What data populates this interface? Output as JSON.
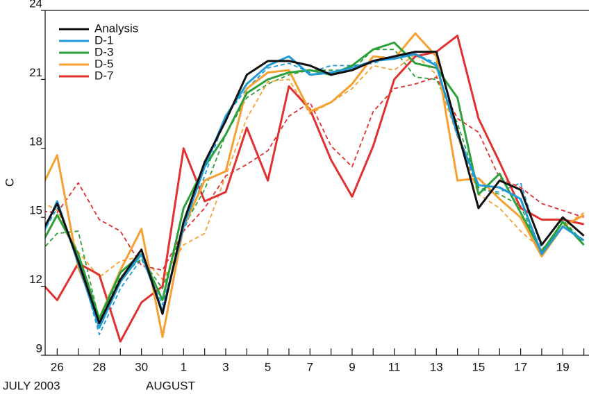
{
  "chart_data": {
    "type": "line",
    "y_label": "C",
    "annotations": [
      "JULY 2003",
      "AUGUST"
    ],
    "categories": [
      null,
      "26",
      null,
      "28",
      null,
      "30",
      null,
      "1",
      null,
      "3",
      null,
      "5",
      null,
      "7",
      null,
      "9",
      null,
      "11",
      null,
      "13",
      null,
      "15",
      null,
      "17",
      null,
      "19",
      null
    ],
    "ylim": [
      9,
      24
    ],
    "yticks": [
      9,
      12,
      15,
      18,
      21,
      24
    ],
    "legend": "upper left",
    "series": [
      {
        "color": "#1f9ad6",
        "dashed": true,
        "values": [
          13.8,
          15.4,
          13.2,
          9.9,
          11.9,
          13.2,
          11.2,
          14.4,
          16.8,
          19.4,
          20.6,
          21.5,
          21.7,
          21.3,
          21.6,
          21.6,
          21.7,
          22.0,
          22.1,
          21.7,
          18.5,
          16.2,
          16.1,
          16.5,
          13.6,
          14.6,
          14.0
        ]
      },
      {
        "color": "#2ca13a",
        "dashed": true,
        "values": [
          13.3,
          14.3,
          14.4,
          10.5,
          12.4,
          13.2,
          11.9,
          14.6,
          16.2,
          18.6,
          20.2,
          20.8,
          21.2,
          21.4,
          21.4,
          21.4,
          22.3,
          22.3,
          21.1,
          21.0,
          19.1,
          16.3,
          16.0,
          15.5,
          13.4,
          14.9,
          13.9
        ]
      },
      {
        "color": "#f5a030",
        "dashed": true,
        "values": [
          15.8,
          15.3,
          13.5,
          12.4,
          13.1,
          13.3,
          12.3,
          13.8,
          14.3,
          16.8,
          19.3,
          20.9,
          21.0,
          19.5,
          20.0,
          20.6,
          21.6,
          21.4,
          22.1,
          21.2,
          18.5,
          16.0,
          15.4,
          14.4,
          13.6,
          14.6,
          15.2
        ]
      },
      {
        "color": "#e03030",
        "dashed": true,
        "values": [
          15.3,
          15.2,
          16.5,
          14.9,
          14.4,
          12.9,
          12.7,
          14.4,
          15.4,
          16.8,
          17.3,
          17.9,
          19.4,
          20.0,
          18.1,
          17.2,
          19.6,
          20.6,
          20.8,
          21.1,
          19.3,
          18.7,
          16.7,
          16.3,
          15.6,
          15.3,
          15.0
        ]
      },
      {
        "name": "D-7",
        "color": "#e03030",
        "values": [
          12.4,
          11.4,
          13.0,
          12.5,
          9.6,
          11.3,
          12.0,
          18.0,
          15.7,
          16.1,
          18.9,
          16.6,
          20.7,
          19.7,
          17.5,
          15.9,
          18.1,
          21.0,
          22.0,
          22.2,
          22.9,
          19.3,
          17.4,
          15.4,
          14.9,
          14.9,
          14.7
        ]
      },
      {
        "name": "D-5",
        "color": "#f5a030",
        "values": [
          15.8,
          17.7,
          12.8,
          10.6,
          12.7,
          14.5,
          9.8,
          14.6,
          16.6,
          17.0,
          20.6,
          21.3,
          21.4,
          19.6,
          20.0,
          20.8,
          22.0,
          21.9,
          23.0,
          22.0,
          16.6,
          16.7,
          15.8,
          15.0,
          13.3,
          14.6,
          15.1
        ]
      },
      {
        "name": "D-3",
        "color": "#2ca13a",
        "values": [
          13.4,
          15.1,
          13.4,
          10.6,
          12.6,
          13.4,
          11.4,
          15.4,
          17.2,
          18.6,
          20.4,
          21.0,
          21.3,
          21.4,
          21.2,
          21.6,
          22.3,
          22.6,
          21.7,
          21.5,
          20.2,
          16.0,
          16.9,
          15.2,
          13.5,
          14.8,
          13.8
        ]
      },
      {
        "name": "D-1",
        "color": "#1f9ad6",
        "values": [
          13.6,
          15.7,
          13.0,
          10.2,
          12.2,
          13.4,
          10.9,
          14.6,
          17.2,
          19.4,
          20.8,
          21.6,
          22.0,
          21.2,
          21.3,
          21.5,
          21.8,
          21.9,
          22.1,
          21.6,
          18.6,
          16.4,
          16.3,
          15.8,
          13.4,
          14.6,
          14.0
        ]
      },
      {
        "name": "Analysis",
        "color": "#111111",
        "values": [
          13.9,
          15.6,
          13.1,
          10.4,
          12.3,
          13.6,
          10.8,
          14.8,
          17.4,
          19.2,
          21.2,
          21.8,
          21.8,
          21.6,
          21.2,
          21.4,
          21.8,
          22.0,
          22.2,
          22.2,
          18.8,
          15.4,
          16.6,
          16.2,
          13.8,
          15.0,
          14.2
        ]
      }
    ]
  }
}
